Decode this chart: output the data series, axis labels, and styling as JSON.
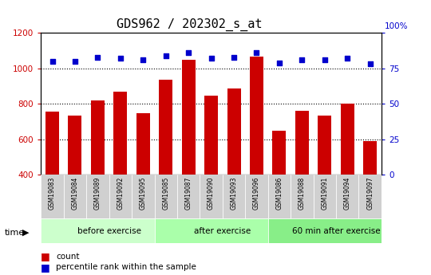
{
  "title": "GDS962 / 202302_s_at",
  "samples": [
    "GSM19083",
    "GSM19084",
    "GSM19089",
    "GSM19092",
    "GSM19095",
    "GSM19085",
    "GSM19087",
    "GSM19090",
    "GSM19093",
    "GSM19096",
    "GSM19086",
    "GSM19088",
    "GSM19091",
    "GSM19094",
    "GSM19097"
  ],
  "counts": [
    755,
    735,
    820,
    870,
    745,
    935,
    1050,
    845,
    885,
    1065,
    650,
    760,
    735,
    800,
    590
  ],
  "percentiles": [
    80,
    80,
    83,
    82,
    81,
    84,
    86,
    82,
    83,
    86,
    79,
    81,
    81,
    82,
    78
  ],
  "groups": [
    {
      "label": "before exercise",
      "start": 0,
      "end": 5
    },
    {
      "label": "after exercise",
      "start": 5,
      "end": 10
    },
    {
      "label": "60 min after exercise",
      "start": 10,
      "end": 15
    }
  ],
  "group_colors": [
    "#ccffcc",
    "#aaffaa",
    "#88ee88"
  ],
  "ylim_left": [
    400,
    1200
  ],
  "ylim_right": [
    0,
    100
  ],
  "yticks_left": [
    400,
    600,
    800,
    1000,
    1200
  ],
  "yticks_right": [
    0,
    25,
    50,
    75,
    100
  ],
  "bar_color": "#cc0000",
  "dot_color": "#0000cc",
  "bg_color": "#ffffff",
  "title_fontsize": 11,
  "axis_color_left": "#cc0000",
  "axis_color_right": "#0000cc",
  "legend_items": [
    "count",
    "percentile rank within the sample"
  ]
}
